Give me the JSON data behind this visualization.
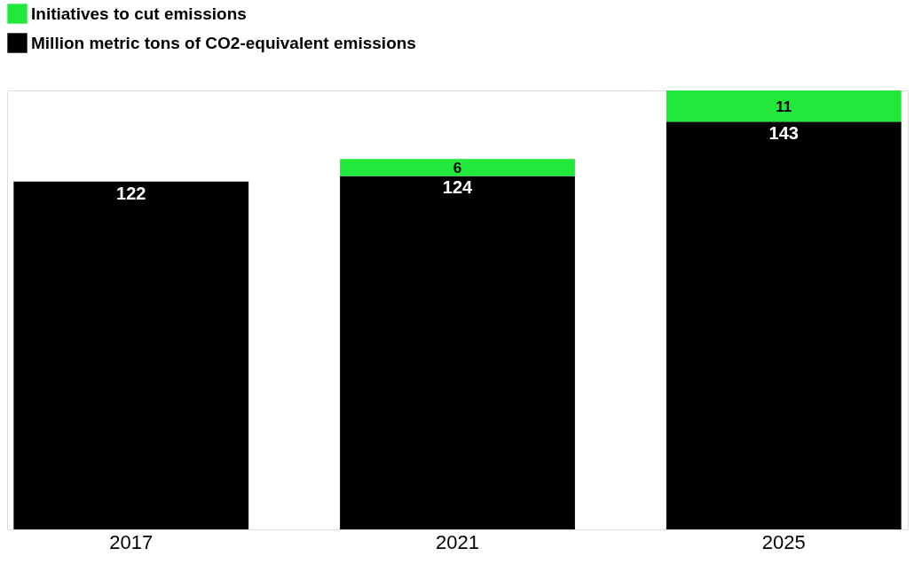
{
  "chart_data": {
    "type": "bar",
    "stacked": true,
    "data_labels": true,
    "legend": "top left",
    "categories": [
      "2017",
      "2021",
      "2025"
    ],
    "series": [
      {
        "name": "Million metric tons of CO2-equivalent emissions",
        "color": "#000000",
        "values": [
          122,
          124,
          143
        ]
      },
      {
        "name": "Initiatives to cut emissions",
        "color": "#22e83c",
        "values": [
          null,
          6,
          11
        ]
      }
    ]
  }
}
